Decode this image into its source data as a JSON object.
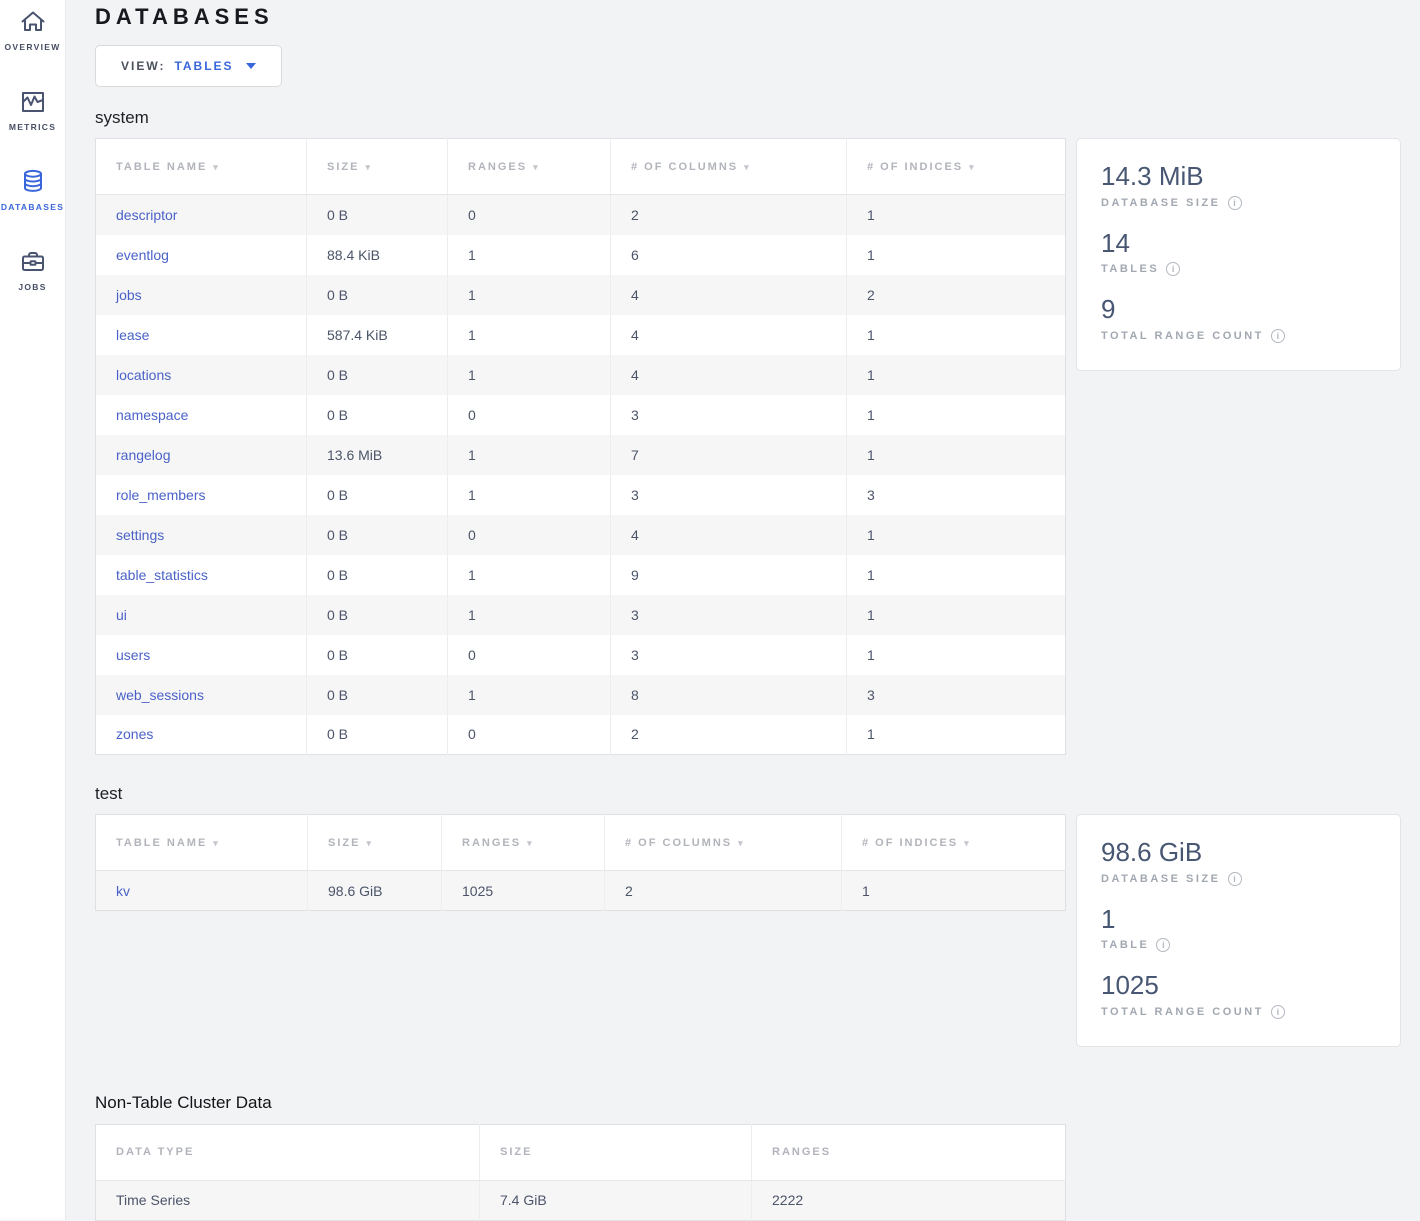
{
  "sidebar": {
    "items": [
      {
        "label": "OVERVIEW",
        "icon": "home-icon",
        "active": false
      },
      {
        "label": "METRICS",
        "icon": "metrics-icon",
        "active": false
      },
      {
        "label": "DATABASES",
        "icon": "database-icon",
        "active": true
      },
      {
        "label": "JOBS",
        "icon": "briefcase-icon",
        "active": false
      }
    ]
  },
  "header": {
    "title": "DATABASES"
  },
  "view_selector": {
    "label": "VIEW:",
    "value": "TABLES"
  },
  "databases": [
    {
      "name": "system",
      "columns": [
        "TABLE NAME",
        "SIZE",
        "RANGES",
        "# OF COLUMNS",
        "# OF INDICES"
      ],
      "rows": [
        [
          "descriptor",
          "0 B",
          "0",
          "2",
          "1"
        ],
        [
          "eventlog",
          "88.4 KiB",
          "1",
          "6",
          "1"
        ],
        [
          "jobs",
          "0 B",
          "1",
          "4",
          "2"
        ],
        [
          "lease",
          "587.4 KiB",
          "1",
          "4",
          "1"
        ],
        [
          "locations",
          "0 B",
          "1",
          "4",
          "1"
        ],
        [
          "namespace",
          "0 B",
          "0",
          "3",
          "1"
        ],
        [
          "rangelog",
          "13.6 MiB",
          "1",
          "7",
          "1"
        ],
        [
          "role_members",
          "0 B",
          "1",
          "3",
          "3"
        ],
        [
          "settings",
          "0 B",
          "0",
          "4",
          "1"
        ],
        [
          "table_statistics",
          "0 B",
          "1",
          "9",
          "1"
        ],
        [
          "ui",
          "0 B",
          "1",
          "3",
          "1"
        ],
        [
          "users",
          "0 B",
          "0",
          "3",
          "1"
        ],
        [
          "web_sessions",
          "0 B",
          "1",
          "8",
          "3"
        ],
        [
          "zones",
          "0 B",
          "0",
          "2",
          "1"
        ]
      ],
      "summary": [
        {
          "value": "14.3 MiB",
          "label": "DATABASE SIZE"
        },
        {
          "value": "14",
          "label": "TABLES"
        },
        {
          "value": "9",
          "label": "TOTAL RANGE COUNT"
        }
      ]
    },
    {
      "name": "test",
      "columns": [
        "TABLE NAME",
        "SIZE",
        "RANGES",
        "# OF COLUMNS",
        "# OF INDICES"
      ],
      "rows": [
        [
          "kv",
          "98.6 GiB",
          "1025",
          "2",
          "1"
        ]
      ],
      "summary": [
        {
          "value": "98.6 GiB",
          "label": "DATABASE SIZE"
        },
        {
          "value": "1",
          "label": "TABLE"
        },
        {
          "value": "1025",
          "label": "TOTAL RANGE COUNT"
        }
      ]
    }
  ],
  "non_table": {
    "title": "Non-Table Cluster Data",
    "columns": [
      "DATA TYPE",
      "SIZE",
      "RANGES"
    ],
    "rows": [
      [
        "Time Series",
        "7.4 GiB",
        "2222"
      ]
    ]
  },
  "icons": {
    "info": "i",
    "sort_arrow": "▾"
  },
  "colors": {
    "accent_blue": "#3a66dc",
    "link_blue": "#4a62c8",
    "stat_navy": "#475672",
    "page_bg": "#f2f3f4"
  }
}
